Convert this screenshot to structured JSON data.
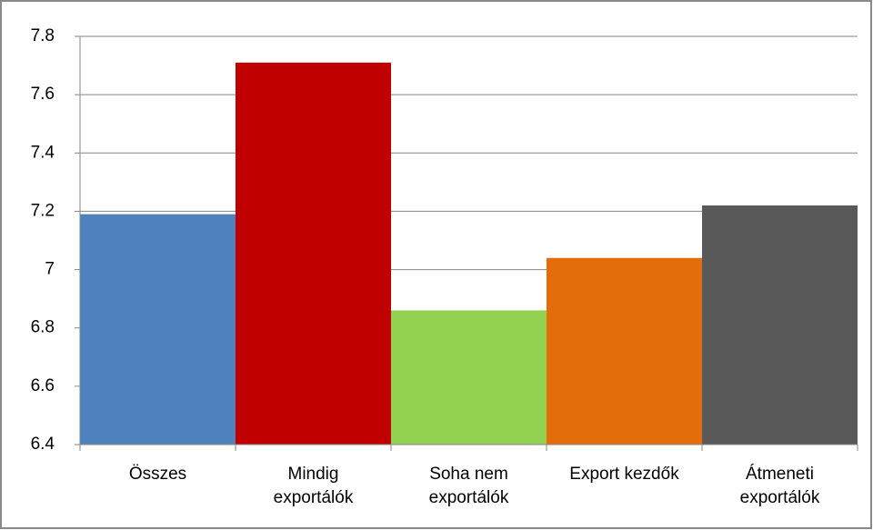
{
  "chart_data": {
    "type": "bar",
    "categories": [
      "Összes",
      "Mindig\nexportálók",
      "Soha nem\nexportálók",
      "Export kezdők",
      "Átmeneti\nexportálók"
    ],
    "values": [
      7.19,
      7.71,
      6.86,
      7.04,
      7.22
    ],
    "colors": [
      "#4f81bd",
      "#c00000",
      "#92d050",
      "#e46c0a",
      "#595959"
    ],
    "ylim": [
      6.4,
      7.8
    ],
    "yticks": [
      6.4,
      6.6,
      6.8,
      7,
      7.2,
      7.4,
      7.6,
      7.8
    ],
    "grid": true
  }
}
